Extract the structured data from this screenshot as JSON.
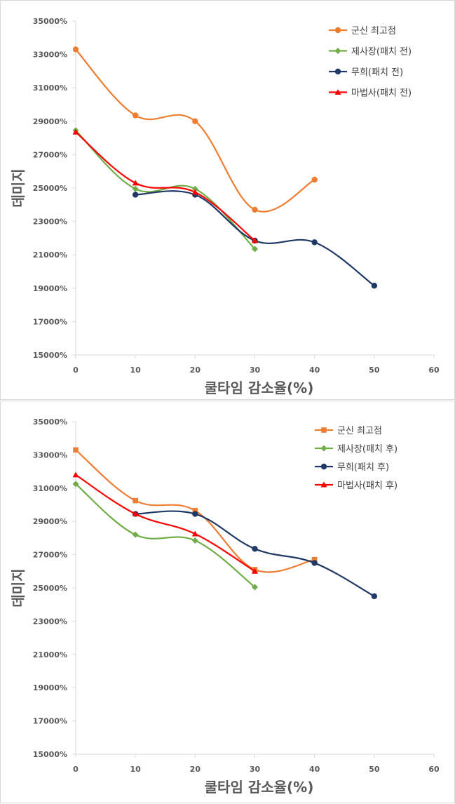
{
  "chart_data": [
    {
      "type": "line",
      "xlabel": "쿨타임 감소율(%)",
      "ylabel": "데미지",
      "xlim": [
        0,
        60
      ],
      "ylim": [
        15000,
        35000
      ],
      "xticks": [
        0,
        10,
        20,
        30,
        40,
        50,
        60
      ],
      "xtick_labels": [
        "0",
        "10",
        "20",
        "30",
        "40",
        "50",
        "60"
      ],
      "yticks": [
        15000,
        17000,
        19000,
        21000,
        23000,
        25000,
        27000,
        29000,
        31000,
        33000,
        35000
      ],
      "ytick_labels": [
        "15000%",
        "17000%",
        "19000%",
        "21000%",
        "23000%",
        "25000%",
        "27000%",
        "29000%",
        "31000%",
        "33000%",
        "35000%"
      ],
      "grid": false,
      "smooth": true,
      "legend_position": "top-right",
      "series": [
        {
          "name": "군신 최고점",
          "color": "#ED7D31",
          "marker": "circle",
          "x": [
            0,
            10,
            20,
            30,
            40
          ],
          "values": [
            33300,
            29350,
            29000,
            23700,
            25500
          ]
        },
        {
          "name": "제사장(패치 전)",
          "color": "#70AD47",
          "marker": "diamond",
          "x": [
            0,
            10,
            20,
            30
          ],
          "values": [
            28450,
            24950,
            24950,
            21350
          ]
        },
        {
          "name": "무희(패치 전)",
          "color": "#203864",
          "marker": "circle",
          "x": [
            10,
            20,
            30,
            40,
            50
          ],
          "values": [
            24600,
            24600,
            21850,
            21750,
            19150
          ]
        },
        {
          "name": "마법사(패치 전)",
          "color": "#FF0000",
          "marker": "triangle",
          "x": [
            0,
            10,
            20,
            30
          ],
          "values": [
            28350,
            25300,
            24750,
            21850
          ]
        }
      ]
    },
    {
      "type": "line",
      "xlabel": "쿨타임 감소율(%)",
      "ylabel": "데미지",
      "xlim": [
        0,
        60
      ],
      "ylim": [
        15000,
        35000
      ],
      "xticks": [
        0,
        10,
        20,
        30,
        40,
        50,
        60
      ],
      "xtick_labels": [
        "0",
        "10",
        "20",
        "30",
        "40",
        "50",
        "60"
      ],
      "yticks": [
        15000,
        17000,
        19000,
        21000,
        23000,
        25000,
        27000,
        29000,
        31000,
        33000,
        35000
      ],
      "ytick_labels": [
        "15000%",
        "17000%",
        "19000%",
        "21000%",
        "23000%",
        "25000%",
        "27000%",
        "29000%",
        "31000%",
        "33000%",
        "35000%"
      ],
      "grid": false,
      "smooth": true,
      "legend_position": "top-right",
      "series": [
        {
          "name": "군신 최고점",
          "color": "#ED7D31",
          "marker": "square",
          "x": [
            0,
            10,
            20,
            30,
            40
          ],
          "values": [
            33300,
            30250,
            29650,
            26100,
            26700
          ]
        },
        {
          "name": "제사장(패치 후)",
          "color": "#70AD47",
          "marker": "diamond",
          "x": [
            0,
            10,
            20,
            30
          ],
          "values": [
            31250,
            28200,
            27850,
            25050
          ]
        },
        {
          "name": "무희(패치 후)",
          "color": "#203864",
          "marker": "circle",
          "x": [
            10,
            20,
            30,
            40,
            50
          ],
          "values": [
            29450,
            29450,
            27350,
            26500,
            24500
          ]
        },
        {
          "name": "마법사(패치 후)",
          "color": "#FF0000",
          "marker": "triangle",
          "x": [
            0,
            10,
            20,
            30
          ],
          "values": [
            31800,
            29450,
            28250,
            26000
          ]
        }
      ]
    }
  ]
}
